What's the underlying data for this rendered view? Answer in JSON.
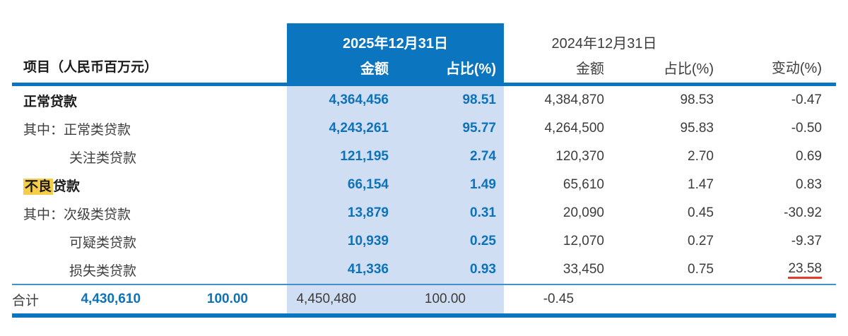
{
  "colors": {
    "header_blue": "#0c75bf",
    "band_light_blue": "#cfdef2",
    "value_blue": "#0e72b9",
    "highlight_yellow": "#f6cd4a",
    "annotation_red": "#e23b2e"
  },
  "table": {
    "header": {
      "items_label": "项目（人民币百万元）",
      "current": {
        "date": "2025年12月31日",
        "amount": "金额",
        "pct": "占比(%)"
      },
      "prior": {
        "date": "2024年12月31日",
        "amount": "金额",
        "pct": "占比(%)",
        "change": "变动(%)"
      }
    },
    "rows": [
      {
        "label": "正常贷款",
        "amount": "4,364,456",
        "pct": "98.51",
        "prior_amount": "4,384,870",
        "prior_pct": "98.53",
        "change": "-0.47"
      },
      {
        "label": "其中：正常类贷款",
        "amount": "4,243,261",
        "pct": "95.77",
        "prior_amount": "4,264,500",
        "prior_pct": "95.83",
        "change": "-0.50"
      },
      {
        "label": "关注类贷款",
        "amount": "121,195",
        "pct": "2.74",
        "prior_amount": "120,370",
        "prior_pct": "2.70",
        "change": "0.69"
      },
      {
        "label_highlight": "不良",
        "label_rest": "贷款",
        "amount": "66,154",
        "pct": "1.49",
        "prior_amount": "65,610",
        "prior_pct": "1.47",
        "change": "0.83"
      },
      {
        "label": "其中：次级类贷款",
        "amount": "13,879",
        "pct": "0.31",
        "prior_amount": "20,090",
        "prior_pct": "0.45",
        "change": "-30.92"
      },
      {
        "label": "可疑类贷款",
        "amount": "10,939",
        "pct": "0.25",
        "prior_amount": "12,070",
        "prior_pct": "0.27",
        "change": "-9.37"
      },
      {
        "label": "损失类贷款",
        "amount": "41,336",
        "pct": "0.93",
        "prior_amount": "33,450",
        "prior_pct": "0.75",
        "change": "23.58"
      }
    ],
    "total": {
      "label": "合计",
      "amount": "4,430,610",
      "pct": "100.00",
      "prior_amount": "4,450,480",
      "prior_pct": "100.00",
      "change": "-0.45"
    }
  }
}
